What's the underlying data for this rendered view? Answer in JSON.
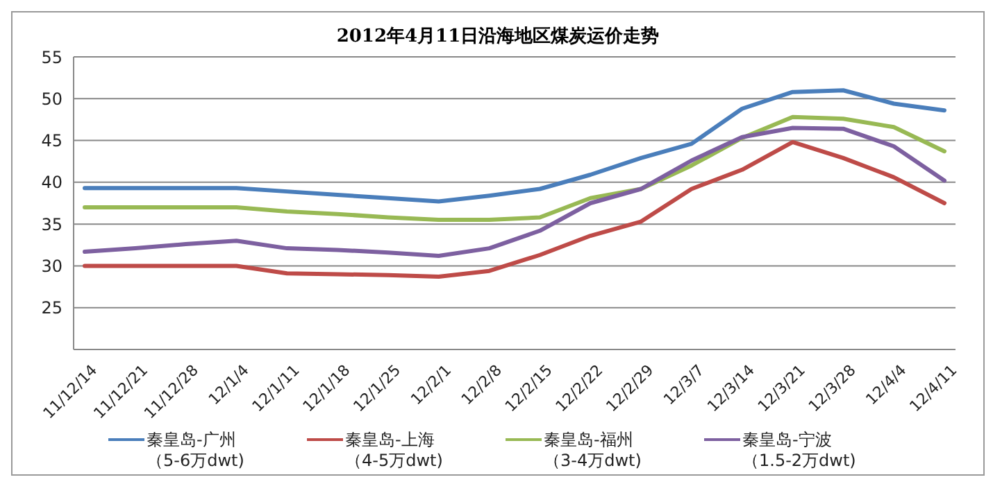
{
  "chart_data": {
    "type": "line",
    "title": "2012年4月11日沿海地区煤炭运价走势",
    "categories": [
      "11/12/14",
      "11/12/21",
      "11/12/28",
      "12/1/4",
      "12/1/11",
      "12/1/18",
      "12/1/25",
      "12/2/1",
      "12/2/8",
      "12/2/15",
      "12/2/22",
      "12/2/29",
      "12/3/7",
      "12/3/14",
      "12/3/21",
      "12/3/28",
      "12/4/4",
      "12/4/11"
    ],
    "series": [
      {
        "name": "秦皇岛-广州（5-6万dwt)",
        "color": "#4a7ebb",
        "values": [
          39.3,
          39.3,
          39.3,
          39.3,
          38.9,
          38.5,
          38.1,
          37.7,
          38.4,
          39.2,
          40.9,
          42.9,
          44.6,
          48.8,
          50.8,
          51.0,
          49.4,
          48.6
        ]
      },
      {
        "name": "秦皇岛-上海（4-5万dwt)",
        "color": "#be4b48",
        "values": [
          30.0,
          30.0,
          30.0,
          30.0,
          29.1,
          29.0,
          28.9,
          28.7,
          29.4,
          31.3,
          33.6,
          35.3,
          39.2,
          41.5,
          44.8,
          42.9,
          40.6,
          37.5
        ]
      },
      {
        "name": "秦皇岛-福州（3-4万dwt)",
        "color": "#98b954",
        "values": [
          37.0,
          37.0,
          37.0,
          37.0,
          36.5,
          36.2,
          35.8,
          35.5,
          35.5,
          35.8,
          38.1,
          39.2,
          42.0,
          45.3,
          47.8,
          47.6,
          46.6,
          43.7
        ]
      },
      {
        "name": "秦皇岛-宁波（1.5-2万dwt)",
        "color": "#7d60a0",
        "values": [
          31.7,
          32.1,
          32.6,
          33.0,
          32.1,
          31.9,
          31.6,
          31.2,
          32.1,
          34.2,
          37.5,
          39.2,
          42.6,
          45.4,
          46.5,
          46.4,
          44.3,
          40.2
        ]
      }
    ],
    "ylim": [
      20,
      55
    ],
    "yticks": [
      25,
      30,
      35,
      40,
      45,
      50,
      55
    ],
    "grid": "y",
    "legend": "bottom",
    "marker": "none",
    "line_style": "solid"
  }
}
